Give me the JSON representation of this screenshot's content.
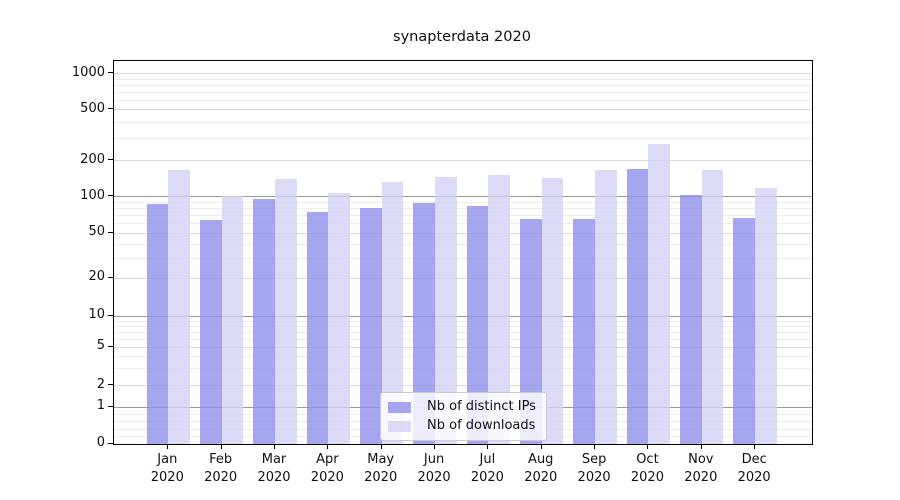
{
  "title": "synapterdata 2020",
  "chart_data": {
    "type": "bar",
    "title": "synapterdata 2020",
    "yscale": "symlog-asinh",
    "grid": true,
    "legend_position": "lower center",
    "ylim": [
      0,
      1100
    ],
    "yticks": [
      0,
      1,
      2,
      5,
      10,
      20,
      50,
      100,
      200,
      500,
      1000
    ],
    "categories": [
      {
        "line1": "Jan",
        "line2": "2020"
      },
      {
        "line1": "Feb",
        "line2": "2020"
      },
      {
        "line1": "Mar",
        "line2": "2020"
      },
      {
        "line1": "Apr",
        "line2": "2020"
      },
      {
        "line1": "May",
        "line2": "2020"
      },
      {
        "line1": "Jun",
        "line2": "2020"
      },
      {
        "line1": "Jul",
        "line2": "2020"
      },
      {
        "line1": "Aug",
        "line2": "2020"
      },
      {
        "line1": "Sep",
        "line2": "2020"
      },
      {
        "line1": "Oct",
        "line2": "2020"
      },
      {
        "line1": "Nov",
        "line2": "2020"
      },
      {
        "line1": "Dec",
        "line2": "2020"
      }
    ],
    "series": [
      {
        "name": "Nb of distinct IPs",
        "color": "rgba(144,144,236,0.8)",
        "values": [
          87,
          64,
          95,
          75,
          80,
          88,
          83,
          66,
          65,
          169,
          103,
          67
        ]
      },
      {
        "name": "Nb of downloads",
        "color": "rgba(210,210,246,0.8)",
        "values": [
          168,
          101,
          140,
          107,
          133,
          147,
          152,
          142,
          166,
          270,
          166,
          118
        ]
      }
    ]
  }
}
